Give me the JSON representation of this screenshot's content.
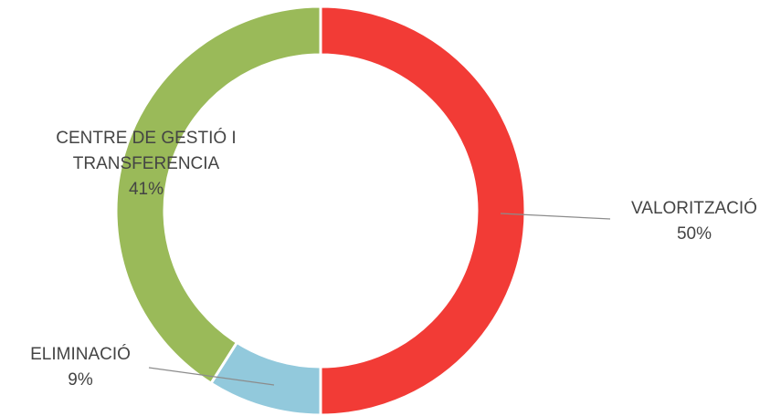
{
  "chart_data": {
    "type": "pie",
    "variant": "donut",
    "categories": [
      "VALORITZACIÓ",
      "ELIMINACIÓ",
      "CENTRE DE GESTIÓ I TRANSFERENCIA"
    ],
    "values": [
      50,
      9,
      41
    ],
    "percent_labels": [
      "50%",
      "9%",
      "41%"
    ],
    "label_lines": [
      [
        "VALORITZACIÓ"
      ],
      [
        "ELIMINACIÓ"
      ],
      [
        "CENTRE DE GESTIÓ I",
        "TRANSFERENCIA"
      ]
    ],
    "colors": [
      "#f23b36",
      "#92c9dc",
      "#9aba59"
    ],
    "legend": "none",
    "data_labels": "outside-with-leader-lines"
  }
}
